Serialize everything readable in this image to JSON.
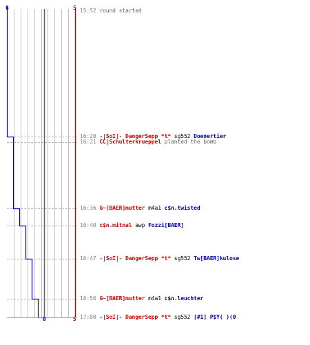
{
  "colors": {
    "terrorist": "#cc0000",
    "counter_terrorist": "#0000cc",
    "time": "#808080",
    "weapon": "#000000",
    "action": "#606060",
    "grid": "#c0c0c0"
  },
  "axis": {
    "left_top": "6",
    "right_top": "5",
    "bottom_center": "0",
    "right_bottom": "5"
  },
  "chart_data": {
    "type": "line",
    "title": "",
    "xlabel": "",
    "ylabel": "",
    "lanes": 10,
    "series": [
      {
        "color": "#0000cc",
        "alive_after_each_event": [
          6,
          5,
          4,
          3,
          2,
          1,
          0
        ]
      },
      {
        "color": "#cc0000",
        "alive_after_each_event": [
          5,
          5,
          5,
          5,
          5,
          5,
          5
        ]
      }
    ]
  },
  "events": [
    {
      "time": "15:52",
      "actor": "",
      "actor_team": "",
      "weapon": "",
      "target": "",
      "target_team": "",
      "action": "round started"
    },
    {
      "time": "16:20",
      "actor": "-|SoI|- DangerSepp *t*",
      "actor_team": "t-red",
      "weapon": "sg552",
      "target": "Doenertier",
      "target_team": "t-blue",
      "action": ""
    },
    {
      "time": "16:21",
      "actor": "CC|Schulterkrueppel",
      "actor_team": "t-red",
      "weapon": "",
      "target": "",
      "target_team": "",
      "action": "planted the bomb"
    },
    {
      "time": "16:36",
      "actor": "G~[BAER]mutter",
      "actor_team": "t-red",
      "weapon": "m4a1",
      "target": "c$n.twisted",
      "target_team": "t-blue",
      "action": ""
    },
    {
      "time": "16:40",
      "actor": "c$n.mitnal",
      "actor_team": "t-red",
      "weapon": "awp",
      "target": "Fozzi[BAER]",
      "target_team": "t-blue",
      "action": ""
    },
    {
      "time": "16:47",
      "actor": "-|SoI|- DangerSepp *t*",
      "actor_team": "t-red",
      "weapon": "sg552",
      "target": "Tw[BAER]kulose",
      "target_team": "t-blue",
      "action": ""
    },
    {
      "time": "16:56",
      "actor": "G~[BAER]mutter",
      "actor_team": "t-red",
      "weapon": "m4a1",
      "target": "c$n.leuchter",
      "target_team": "t-blue",
      "action": ""
    },
    {
      "time": "17:00",
      "actor": "-|SoI|- DangerSepp *t*",
      "actor_team": "t-red",
      "weapon": "sg552",
      "target": "[#1] P$Y( )(0",
      "target_team": "t-blue",
      "action": ""
    }
  ]
}
